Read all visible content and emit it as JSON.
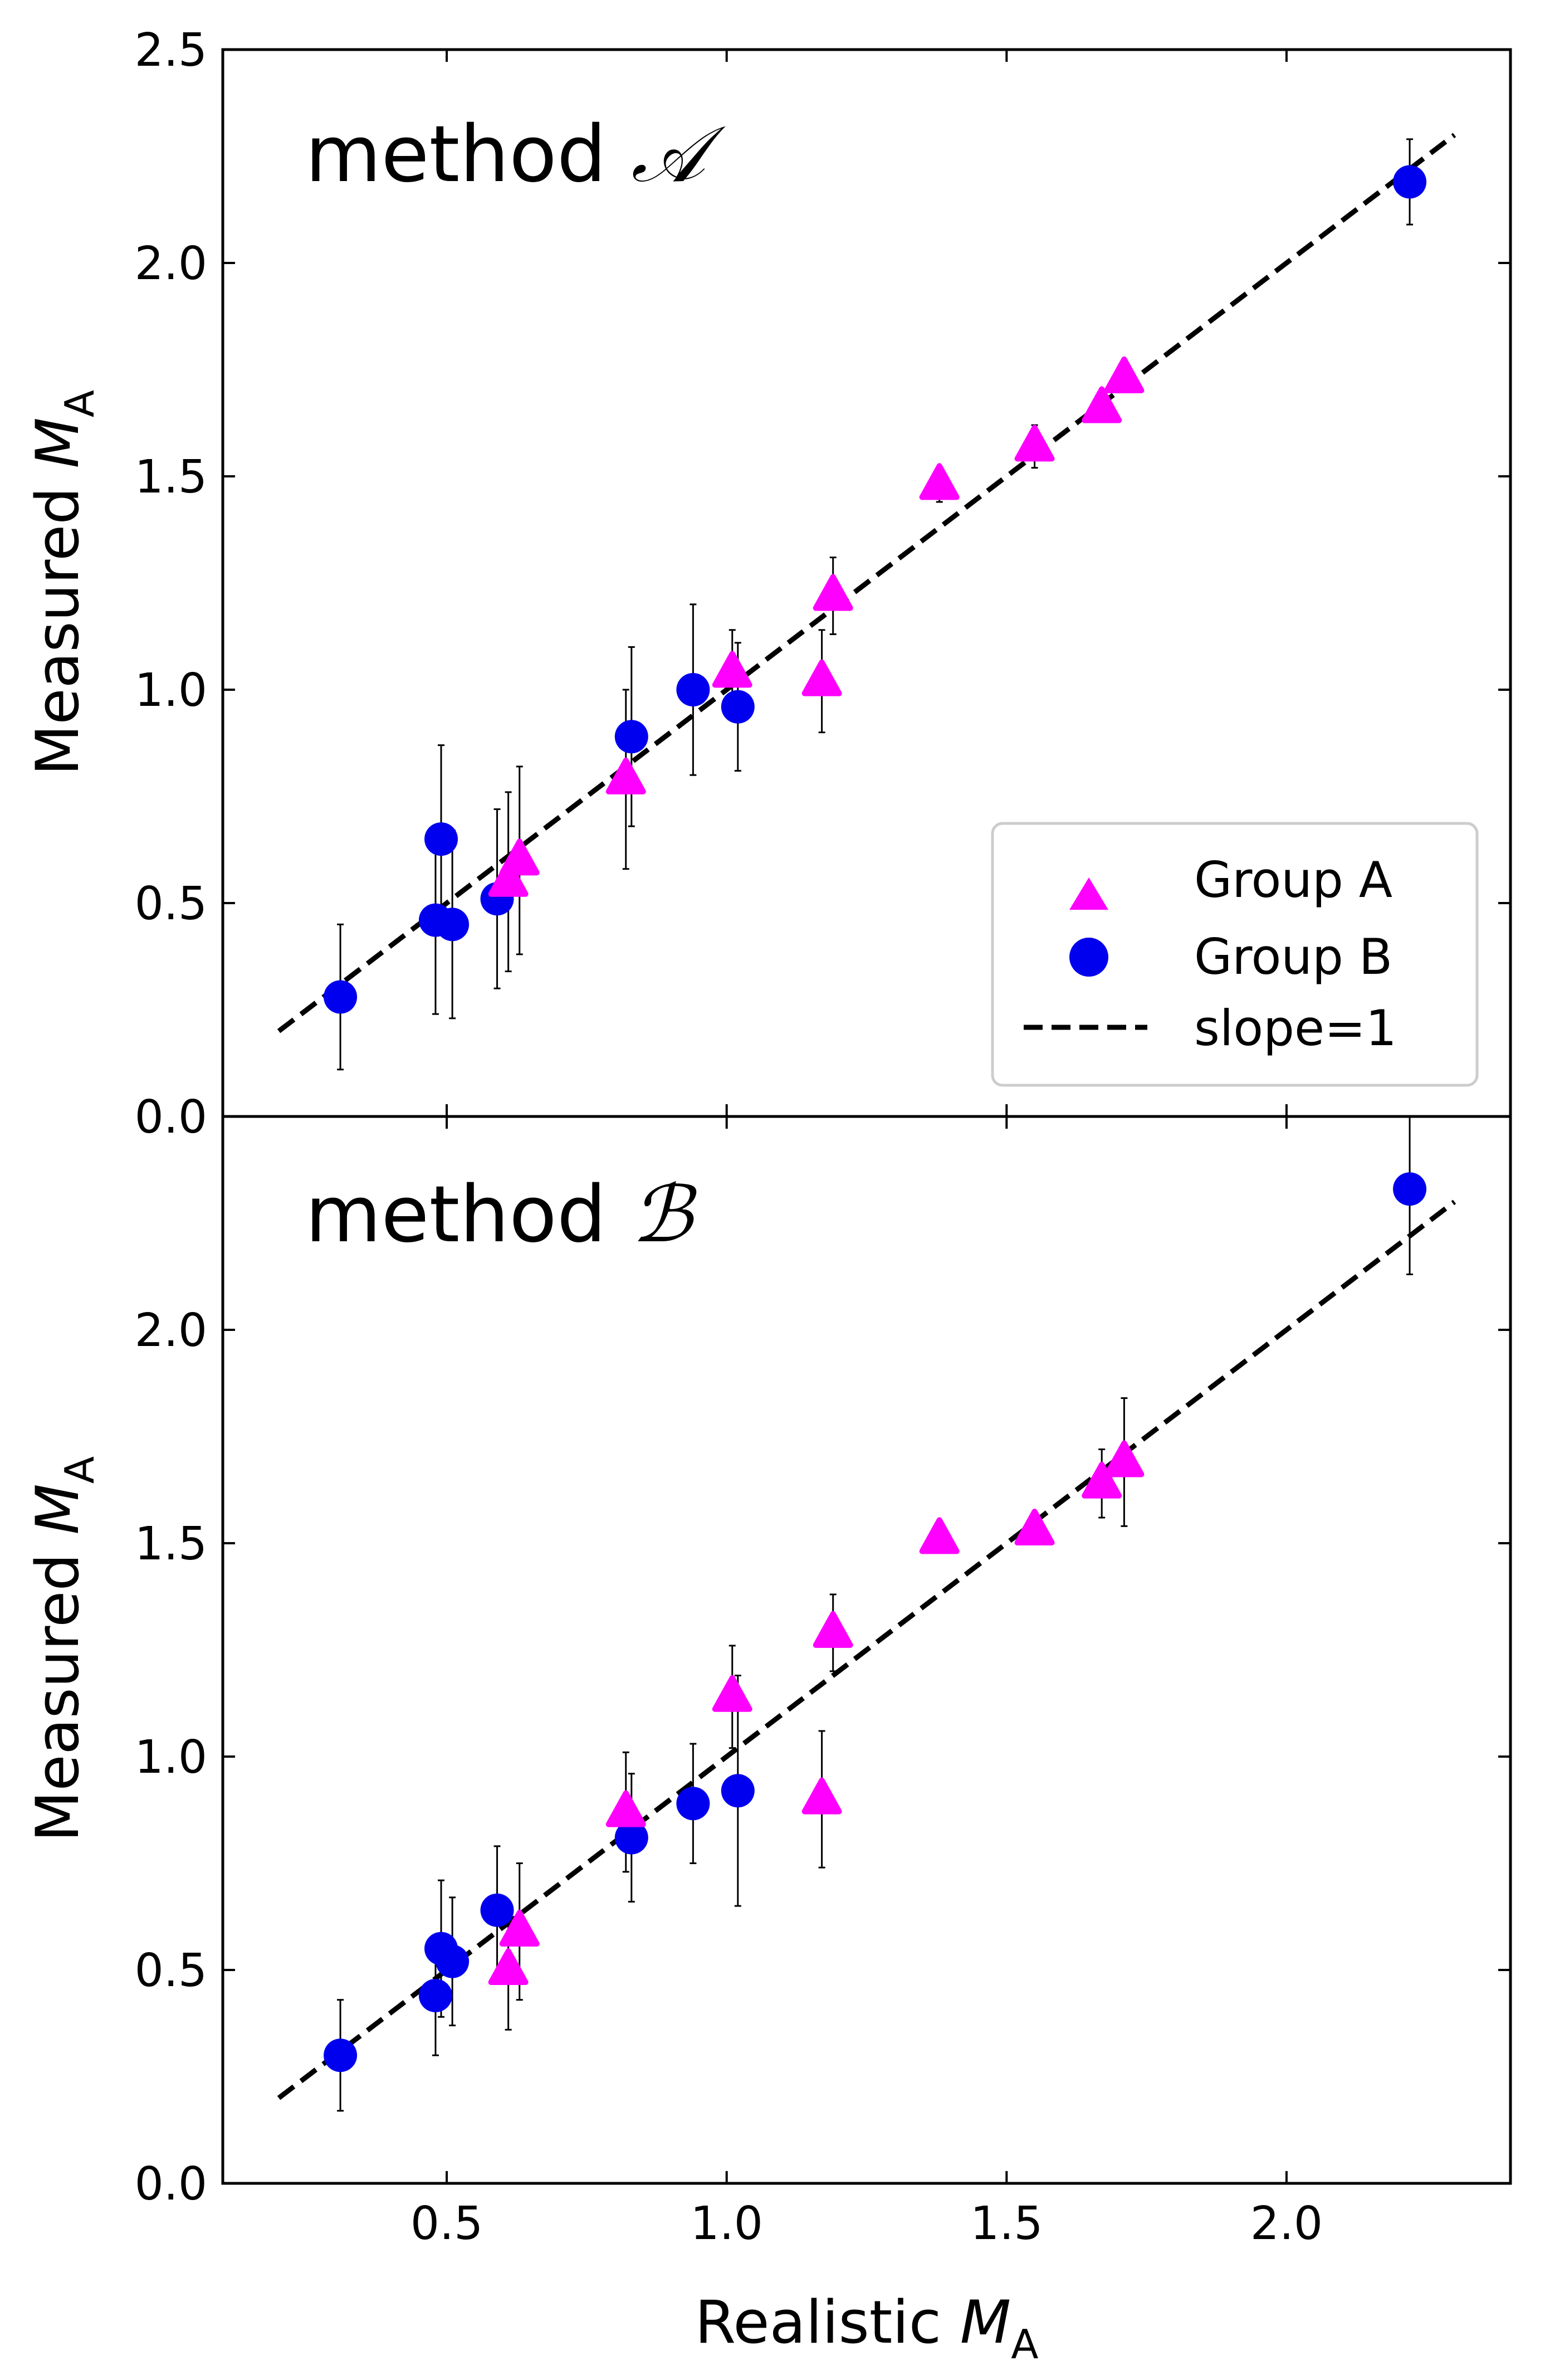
{
  "figure": {
    "xlabel": "Realistic",
    "xlabel_symbol": "M",
    "xlabel_subscript": "A",
    "ylabel": "Measured",
    "ylabel_symbol": "M",
    "ylabel_subscript": "A",
    "legend": {
      "location": "lower-right of top panel",
      "group_a": "Group A",
      "group_b": "Group B",
      "slope": "slope=1"
    },
    "colors": {
      "group_a": "#ff00ff",
      "group_b": "#0000ee",
      "line": "#000000"
    }
  },
  "chart_data": [
    {
      "type": "scatter",
      "panel": "top",
      "title_prefix": "method",
      "title_script": "𝒜",
      "xlim": [
        0.1,
        2.4
      ],
      "ylim": [
        0.0,
        2.5
      ],
      "xticks": [
        0.5,
        1.0,
        1.5,
        2.0
      ],
      "yticks": [
        0.0,
        0.5,
        1.0,
        1.5,
        2.0,
        2.5
      ],
      "ytick_labels": [
        "0.0",
        "0.5",
        "1.0",
        "1.5",
        "2.0",
        "2.5"
      ],
      "reference_line": {
        "label": "slope=1",
        "x": [
          0.2,
          2.3
        ],
        "y": [
          0.2,
          2.3
        ]
      },
      "series": [
        {
          "name": "Group A",
          "marker": "triangle",
          "points": [
            {
              "x": 0.61,
              "y": 0.55,
              "err": 0.21
            },
            {
              "x": 0.63,
              "y": 0.6,
              "err": 0.22
            },
            {
              "x": 0.82,
              "y": 0.79,
              "err": 0.21
            },
            {
              "x": 1.01,
              "y": 1.04,
              "err": 0.1
            },
            {
              "x": 1.17,
              "y": 1.02,
              "err": 0.12
            },
            {
              "x": 1.19,
              "y": 1.22,
              "err": 0.09
            },
            {
              "x": 1.38,
              "y": 1.48,
              "err": 0.04
            },
            {
              "x": 1.55,
              "y": 1.57,
              "err": 0.05
            },
            {
              "x": 1.67,
              "y": 1.66,
              "err": 0.02
            },
            {
              "x": 1.71,
              "y": 1.73,
              "err": 0.02
            }
          ]
        },
        {
          "name": "Group B",
          "marker": "circle",
          "points": [
            {
              "x": 0.31,
              "y": 0.28,
              "err": 0.17
            },
            {
              "x": 0.48,
              "y": 0.46,
              "err": 0.22
            },
            {
              "x": 0.49,
              "y": 0.65,
              "err": 0.22
            },
            {
              "x": 0.51,
              "y": 0.45,
              "err": 0.22
            },
            {
              "x": 0.59,
              "y": 0.51,
              "err": 0.21
            },
            {
              "x": 0.83,
              "y": 0.89,
              "err": 0.21
            },
            {
              "x": 0.94,
              "y": 1.0,
              "err": 0.2
            },
            {
              "x": 1.02,
              "y": 0.96,
              "err": 0.15
            },
            {
              "x": 2.22,
              "y": 2.19,
              "err": 0.1
            }
          ]
        }
      ]
    },
    {
      "type": "scatter",
      "panel": "bottom",
      "title_prefix": "method",
      "title_script": "ℬ",
      "xlim": [
        0.1,
        2.4
      ],
      "ylim": [
        0.0,
        2.5
      ],
      "xticks": [
        0.5,
        1.0,
        1.5,
        2.0
      ],
      "xtick_labels": [
        "0.5",
        "1.0",
        "1.5",
        "2.0"
      ],
      "yticks": [
        0.0,
        0.5,
        1.0,
        1.5,
        2.0
      ],
      "ytick_labels": [
        "0.0",
        "0.5",
        "1.0",
        "1.5",
        "2.0"
      ],
      "reference_line": {
        "label": "slope=1",
        "x": [
          0.2,
          2.3
        ],
        "y": [
          0.2,
          2.3
        ]
      },
      "series": [
        {
          "name": "Group A",
          "marker": "triangle",
          "points": [
            {
              "x": 0.61,
              "y": 0.5,
              "err": 0.14
            },
            {
              "x": 0.63,
              "y": 0.59,
              "err": 0.16
            },
            {
              "x": 0.82,
              "y": 0.87,
              "err": 0.14
            },
            {
              "x": 1.01,
              "y": 1.14,
              "err": 0.12
            },
            {
              "x": 1.17,
              "y": 0.9,
              "err": 0.16
            },
            {
              "x": 1.19,
              "y": 1.29,
              "err": 0.09
            },
            {
              "x": 1.38,
              "y": 1.51,
              "err": 0.03
            },
            {
              "x": 1.55,
              "y": 1.53,
              "err": 0.02
            },
            {
              "x": 1.67,
              "y": 1.64,
              "err": 0.08
            },
            {
              "x": 1.71,
              "y": 1.69,
              "err": 0.15
            }
          ]
        },
        {
          "name": "Group B",
          "marker": "circle",
          "points": [
            {
              "x": 0.31,
              "y": 0.3,
              "err": 0.13
            },
            {
              "x": 0.48,
              "y": 0.44,
              "err": 0.14
            },
            {
              "x": 0.49,
              "y": 0.55,
              "err": 0.16
            },
            {
              "x": 0.51,
              "y": 0.52,
              "err": 0.15
            },
            {
              "x": 0.59,
              "y": 0.64,
              "err": 0.15
            },
            {
              "x": 0.83,
              "y": 0.81,
              "err": 0.15
            },
            {
              "x": 0.94,
              "y": 0.89,
              "err": 0.14
            },
            {
              "x": 1.02,
              "y": 0.92,
              "err": 0.27
            },
            {
              "x": 2.22,
              "y": 2.33,
              "err": 0.2
            }
          ]
        }
      ]
    }
  ]
}
